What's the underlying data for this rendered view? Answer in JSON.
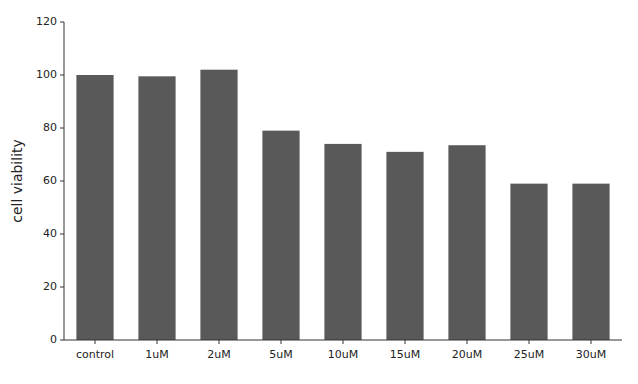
{
  "chart_data": {
    "type": "bar",
    "categories": [
      "control",
      "1uM",
      "2uM",
      "5uM",
      "10uM",
      "15uM",
      "20uM",
      "25uM",
      "30uM"
    ],
    "values": [
      100,
      99.5,
      102,
      79,
      74,
      71,
      73.5,
      59,
      59
    ],
    "color": "#595959",
    "ylabel": "cell viability",
    "ylim": [
      0,
      120
    ],
    "yticks": [
      0,
      20,
      40,
      60,
      80,
      100,
      120
    ],
    "grid": false
  }
}
